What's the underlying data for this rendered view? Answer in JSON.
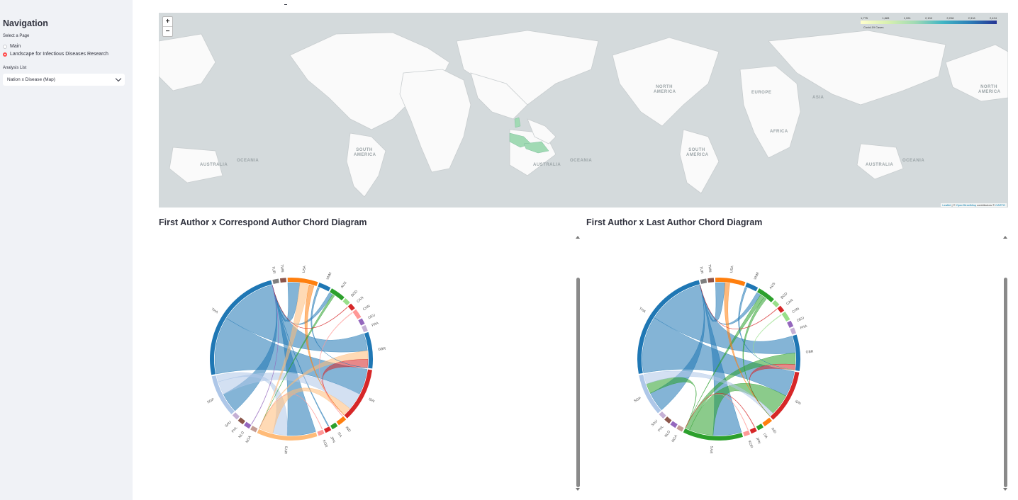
{
  "sidebar": {
    "title": "Navigation",
    "select_page_label": "Select a Page",
    "pages": [
      {
        "label": "Main",
        "checked": false
      },
      {
        "label": "Landscape for Infectious Diseases Research",
        "checked": true
      }
    ],
    "analysis_label": "Analysis List",
    "analysis_value": "Nation x Disease (Map)"
  },
  "map": {
    "zoom_in": "+",
    "zoom_out": "−",
    "legend": {
      "ticks": [
        "1,775",
        "1,883",
        "1,991",
        "2,100",
        "2,208",
        "2,316",
        "2,424"
      ],
      "caption": "Covid-19 Cases"
    },
    "attribution": {
      "leaflet": "Leaflet",
      "osm": "OpenStreetMap",
      "middle": " contributors © ",
      "carto": "CARTO",
      "sep": " | © "
    },
    "labels": [
      {
        "id": "na1",
        "text": "NORTH AMERICA"
      },
      {
        "id": "europe",
        "text": "EUROPE"
      },
      {
        "id": "asia",
        "text": "ASIA"
      },
      {
        "id": "na2",
        "text": "NORTH AMERICA"
      },
      {
        "id": "africa",
        "text": "AFRICA"
      },
      {
        "id": "sa1",
        "text": "SOUTH AMERICA"
      },
      {
        "id": "sa2",
        "text": "SOUTH AMERICA"
      },
      {
        "id": "oceania1",
        "text": "OCEANIA"
      },
      {
        "id": "australia1",
        "text": "AUSTRALIA"
      },
      {
        "id": "australia2",
        "text": "AUSTRALIA"
      },
      {
        "id": "oceania2",
        "text": "OCEANIA"
      },
      {
        "id": "australia3",
        "text": "AUSTRALIA"
      },
      {
        "id": "oceania3",
        "text": "OCEANIA"
      }
    ]
  },
  "charts": {
    "left_title": "First Author x Correspond Author Chord Diagram",
    "right_title": "First Author x Last Author Chord Diagram"
  },
  "chord_left": {
    "groups": [
      {
        "code": "VNM",
        "color": "#1f77b4",
        "value": 4
      },
      {
        "code": "AUS",
        "color": "#2ca02c",
        "value": 5
      },
      {
        "code": "BGD",
        "color": "#98df8a",
        "value": 2
      },
      {
        "code": "CAN",
        "color": "#d62728",
        "value": 2
      },
      {
        "code": "CHN",
        "color": "#ff9896",
        "value": 3
      },
      {
        "code": "DEU",
        "color": "#9467bd",
        "value": 2
      },
      {
        "code": "FRA",
        "color": "#c5b0d5",
        "value": 2
      },
      {
        "code": "GBR",
        "color": "#1f77b4",
        "value": 12
      },
      {
        "code": "IDN",
        "color": "#d62728",
        "value": 18
      },
      {
        "code": "IND",
        "color": "#ff7f0e",
        "value": 3
      },
      {
        "code": "ITA",
        "color": "#2ca02c",
        "value": 2
      },
      {
        "code": "JPN",
        "color": "#d62728",
        "value": 2
      },
      {
        "code": "KOR",
        "color": "#ff9896",
        "value": 2
      },
      {
        "code": "MYS",
        "color": "#ffbb78",
        "value": 20
      },
      {
        "code": "NGA",
        "color": "#c49c94",
        "value": 2
      },
      {
        "code": "NLD",
        "color": "#9467bd",
        "value": 2
      },
      {
        "code": "PHL",
        "color": "#8c564b",
        "value": 2
      },
      {
        "code": "SAU",
        "color": "#c5b0d5",
        "value": 2
      },
      {
        "code": "SGP",
        "color": "#aec7e8",
        "value": 14
      },
      {
        "code": "THA",
        "color": "#1f77b4",
        "value": 40
      },
      {
        "code": "TUR",
        "color": "#7f7f7f",
        "value": 2
      },
      {
        "code": "TWN",
        "color": "#8c564b",
        "value": 2
      },
      {
        "code": "USA",
        "color": "#ff7f0e",
        "value": 10
      }
    ],
    "links": [
      [
        "THA",
        "IDN",
        10
      ],
      [
        "THA",
        "GBR",
        9
      ],
      [
        "THA",
        "MYS",
        7
      ],
      [
        "THA",
        "SGP",
        6
      ],
      [
        "THA",
        "USA",
        5
      ],
      [
        "THA",
        "AUS",
        3
      ],
      [
        "THA",
        "JPN",
        2
      ],
      [
        "SGP",
        "IDN",
        4
      ],
      [
        "SGP",
        "MYS",
        3
      ],
      [
        "MYS",
        "IDN",
        5
      ],
      [
        "MYS",
        "USA",
        4
      ],
      [
        "MYS",
        "GBR",
        3
      ],
      [
        "IDN",
        "GBR",
        3
      ],
      [
        "USA",
        "IDN",
        2
      ],
      [
        "VNM",
        "GBR",
        2
      ],
      [
        "CHN",
        "IND",
        1
      ],
      [
        "AUS",
        "MYS",
        2
      ],
      [
        "CAN",
        "THA",
        1
      ],
      [
        "KOR",
        "MYS",
        1
      ],
      [
        "NLD",
        "THA",
        1
      ]
    ]
  },
  "chord_right": {
    "groups": [
      {
        "code": "VNM",
        "color": "#1f77b4",
        "value": 4
      },
      {
        "code": "AUS",
        "color": "#2ca02c",
        "value": 6
      },
      {
        "code": "BGD",
        "color": "#98df8a",
        "value": 2
      },
      {
        "code": "CAN",
        "color": "#d62728",
        "value": 2
      },
      {
        "code": "CHN",
        "color": "#98df8a",
        "value": 3
      },
      {
        "code": "DEU",
        "color": "#9467bd",
        "value": 2
      },
      {
        "code": "FRA",
        "color": "#c5b0d5",
        "value": 2
      },
      {
        "code": "GBR",
        "color": "#1f77b4",
        "value": 12
      },
      {
        "code": "IDN",
        "color": "#d62728",
        "value": 18
      },
      {
        "code": "IND",
        "color": "#ff7f0e",
        "value": 3
      },
      {
        "code": "ITA",
        "color": "#2ca02c",
        "value": 2
      },
      {
        "code": "JPN",
        "color": "#d62728",
        "value": 2
      },
      {
        "code": "KOR",
        "color": "#ff9896",
        "value": 2
      },
      {
        "code": "MYS",
        "color": "#2ca02c",
        "value": 20
      },
      {
        "code": "NGA",
        "color": "#c49c94",
        "value": 2
      },
      {
        "code": "NLD",
        "color": "#9467bd",
        "value": 2
      },
      {
        "code": "PHL",
        "color": "#8c564b",
        "value": 2
      },
      {
        "code": "SAU",
        "color": "#c5b0d5",
        "value": 2
      },
      {
        "code": "SGP",
        "color": "#aec7e8",
        "value": 14
      },
      {
        "code": "THA",
        "color": "#1f77b4",
        "value": 40
      },
      {
        "code": "TUR",
        "color": "#7f7f7f",
        "value": 2
      },
      {
        "code": "TWN",
        "color": "#8c564b",
        "value": 2
      },
      {
        "code": "USA",
        "color": "#ff7f0e",
        "value": 10
      }
    ],
    "links": [
      [
        "THA",
        "IDN",
        10
      ],
      [
        "THA",
        "GBR",
        9
      ],
      [
        "THA",
        "MYS",
        8
      ],
      [
        "THA",
        "SGP",
        6
      ],
      [
        "THA",
        "USA",
        4
      ],
      [
        "THA",
        "AUS",
        3
      ],
      [
        "MYS",
        "IDN",
        5
      ],
      [
        "MYS",
        "GBR",
        4
      ],
      [
        "MYS",
        "AUS",
        3
      ],
      [
        "MYS",
        "SGP",
        3
      ],
      [
        "SGP",
        "IDN",
        4
      ],
      [
        "IDN",
        "GBR",
        3
      ],
      [
        "USA",
        "IDN",
        2
      ],
      [
        "VNM",
        "GBR",
        2
      ],
      [
        "CHN",
        "GBR",
        1
      ],
      [
        "AUS",
        "IDN",
        2
      ],
      [
        "CAN",
        "THA",
        1
      ],
      [
        "KOR",
        "MYS",
        1
      ],
      [
        "JPN",
        "MYS",
        1
      ]
    ]
  }
}
